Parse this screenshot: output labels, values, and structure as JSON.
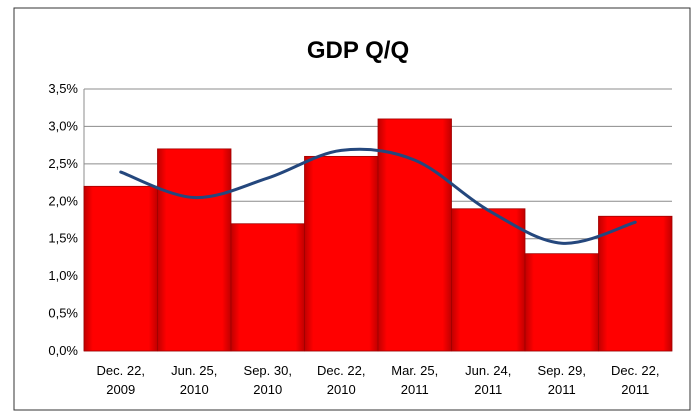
{
  "chart_data": {
    "type": "bar",
    "title": "GDP Q/Q",
    "categories": [
      "Dec. 22, 2009",
      "Jun. 25, 2010",
      "Sep. 30, 2010",
      "Dec. 22, 2010",
      "Mar. 25, 2011",
      "Jun. 24, 2011",
      "Sep. 29, 2011",
      "Dec. 22, 2011"
    ],
    "values": [
      2.2,
      2.7,
      1.7,
      2.6,
      3.1,
      1.9,
      1.3,
      1.8
    ],
    "color": "#ff0000",
    "trend": {
      "values": [
        2.39,
        2.05,
        2.31,
        2.68,
        2.55,
        1.88,
        1.44,
        1.72
      ],
      "color": "#24477d"
    },
    "ylim": [
      0,
      3.5
    ],
    "yticks": [
      {
        "value": 0,
        "label": "0,0%"
      },
      {
        "value": 0.5,
        "label": "0,5%"
      },
      {
        "value": 1,
        "label": "1,0%"
      },
      {
        "value": 1.5,
        "label": "1,5%"
      },
      {
        "value": 2,
        "label": "2,0%"
      },
      {
        "value": 2.5,
        "label": "2,5%"
      },
      {
        "value": 3,
        "label": "3,0%"
      },
      {
        "value": 3.5,
        "label": "3,5%"
      }
    ],
    "grid": true
  }
}
